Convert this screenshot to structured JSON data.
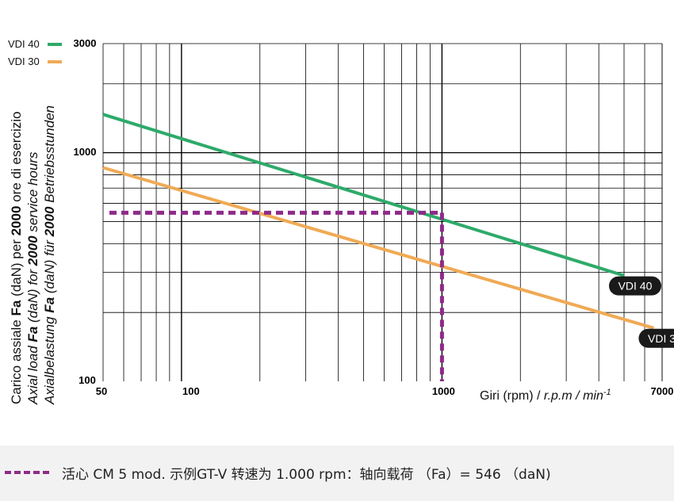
{
  "chart_data": {
    "type": "line",
    "x_scale": "log",
    "y_scale": "log",
    "xlim": [
      50,
      7000
    ],
    "ylim": [
      100,
      3000
    ],
    "grid": true,
    "legend_position": "top-left",
    "x_ticks": [
      "50",
      "100",
      "1000",
      "7000"
    ],
    "y_ticks": [
      "100",
      "1000",
      "3000"
    ],
    "xlabel_plain": "Giri (rpm) / ",
    "xlabel_italic": "r.p.m / min",
    "xlabel_sup": "-1",
    "ylabel_lines": [
      {
        "parts": [
          {
            "text": "Carico assiale ",
            "b": false
          },
          {
            "text": "Fa",
            "b": true
          },
          {
            "text": " (daN) per ",
            "b": false
          },
          {
            "text": "2000",
            "b": true
          },
          {
            "text": " ore di esercizio",
            "b": false
          }
        ],
        "italic": false
      },
      {
        "parts": [
          {
            "text": "Axial load ",
            "b": false
          },
          {
            "text": "Fa",
            "b": true
          },
          {
            "text": " (daN) for ",
            "b": false
          },
          {
            "text": "2000",
            "b": true
          },
          {
            "text": " service hours",
            "b": false
          }
        ],
        "italic": true
      },
      {
        "parts": [
          {
            "text": "Axialbelastung ",
            "b": false
          },
          {
            "text": "Fa",
            "b": true
          },
          {
            "text": " (daN) für ",
            "b": false
          },
          {
            "text": "2000",
            "b": true
          },
          {
            "text": " Betriebsstunden",
            "b": false
          }
        ],
        "italic": true
      }
    ],
    "series": [
      {
        "name": "VDI 40",
        "color": "#2eaa6a",
        "x": [
          50,
          5000
        ],
        "y": [
          1470,
          290
        ]
      },
      {
        "name": "VDI 30",
        "color": "#f0aa55",
        "x": [
          50,
          6500
        ],
        "y": [
          860,
          171
        ]
      }
    ],
    "reference": {
      "x": 1000,
      "y": 546,
      "color": "#8e2a8a"
    }
  },
  "legend": [
    {
      "label": "VDI 40",
      "color": "#2eaa6a"
    },
    {
      "label": "VDI 30",
      "color": "#f0aa55"
    }
  ],
  "footer": {
    "text": "活心 CM 5 mod. 示例GT-V 转速为 1.000 rpm：轴向载荷 （Fa）= 546 （daN)",
    "line_color": "#8e2a8a"
  }
}
